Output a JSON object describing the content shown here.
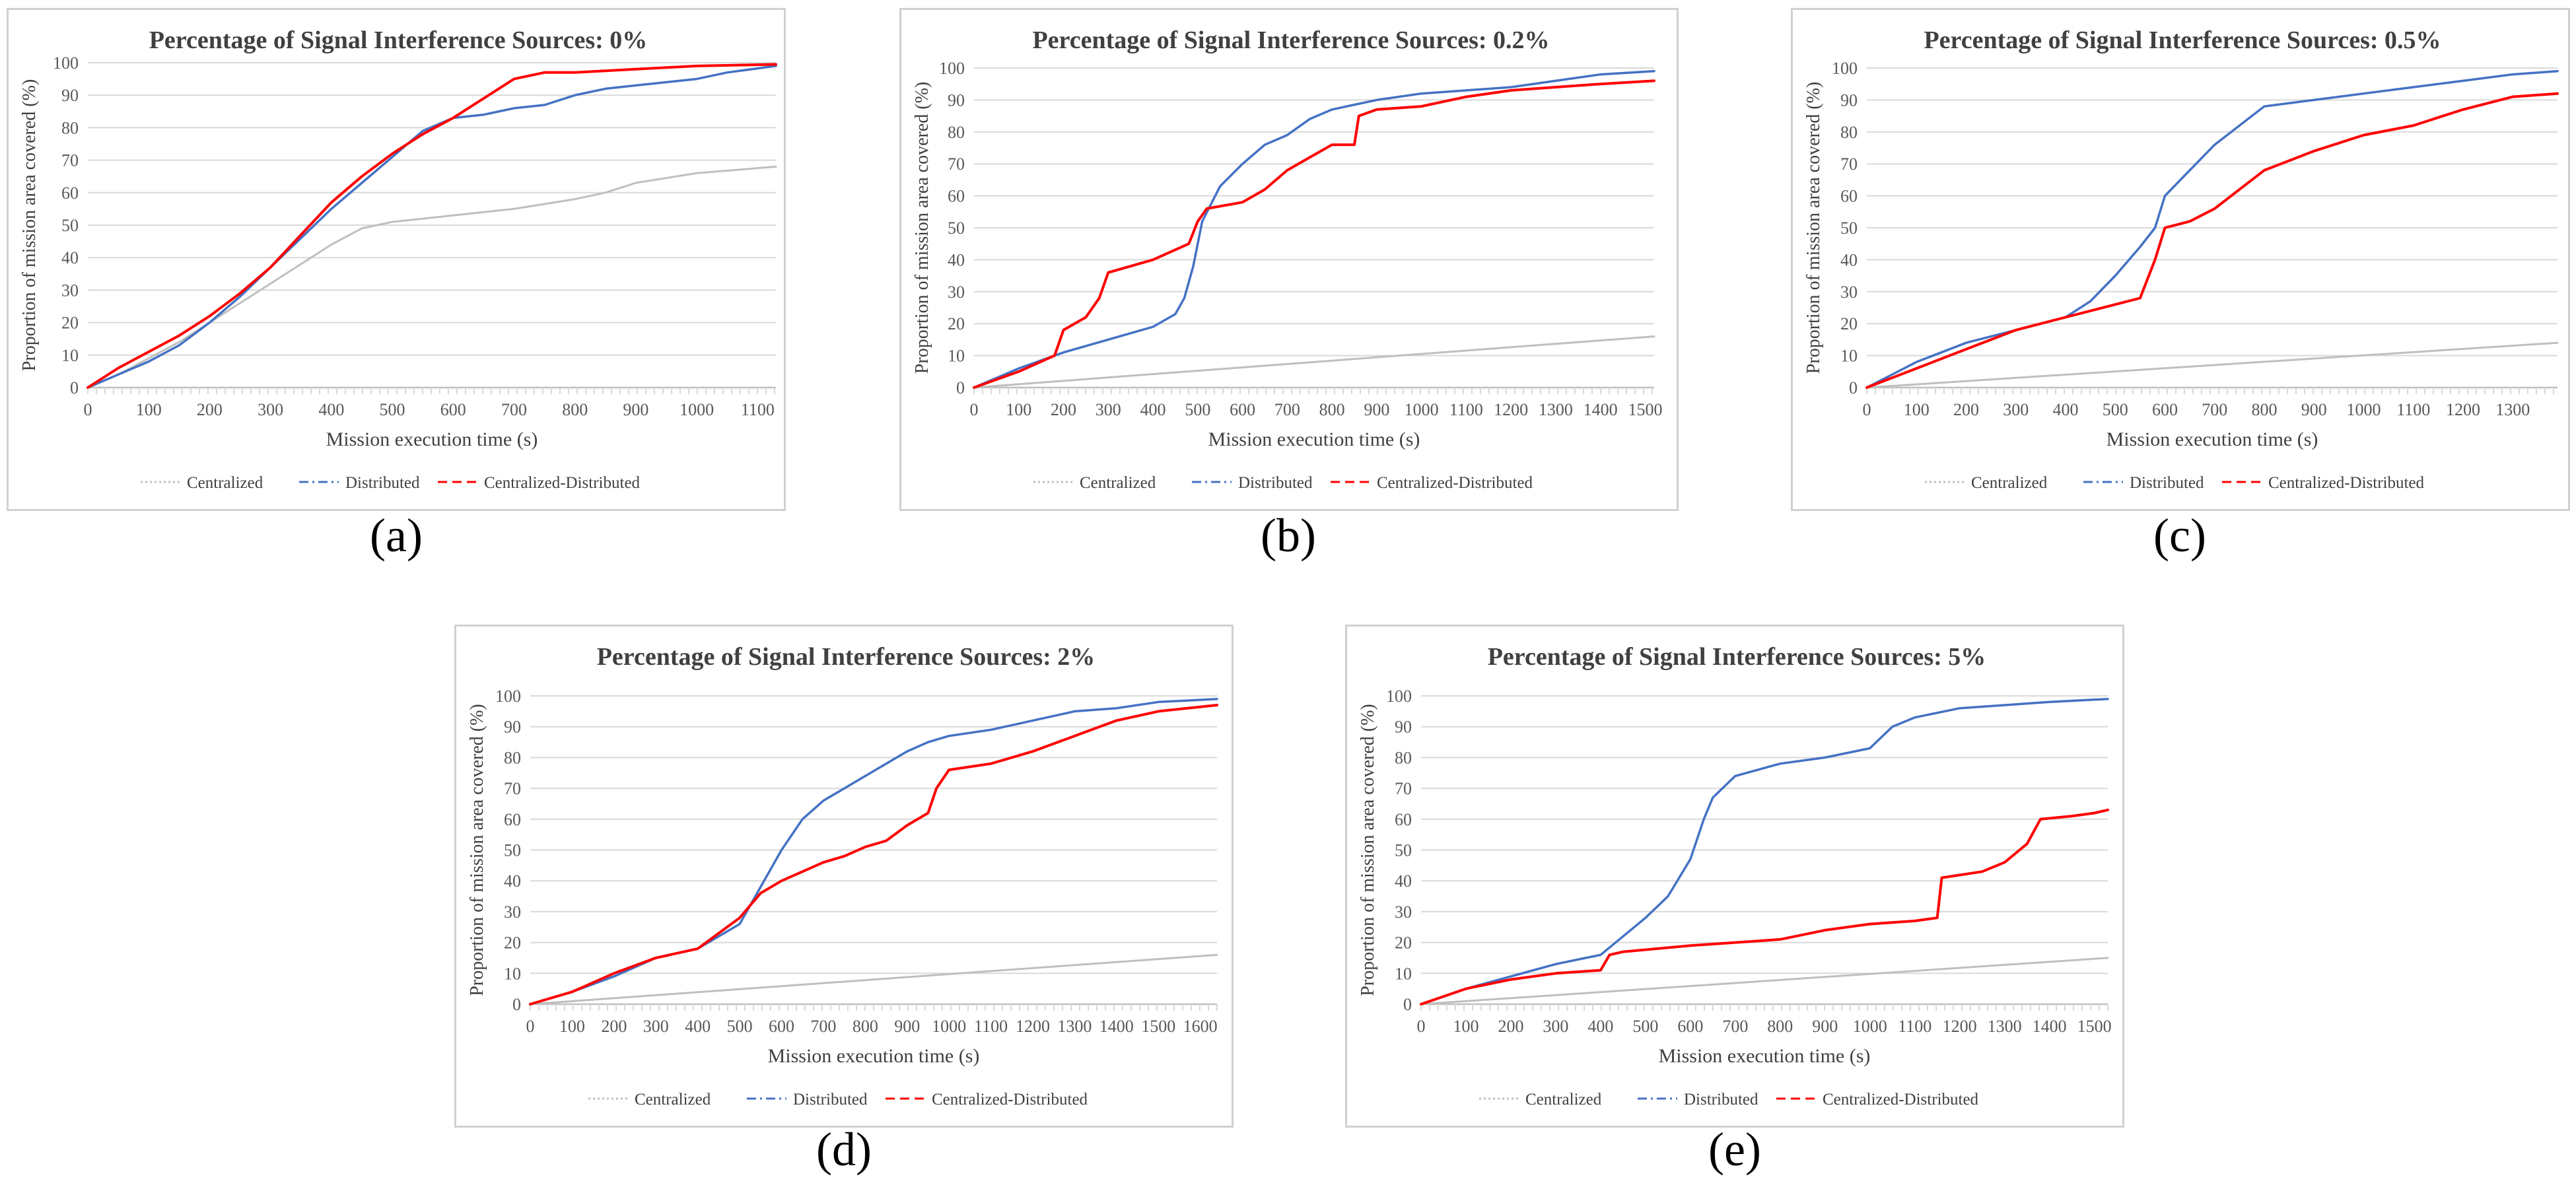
{
  "colors": {
    "centralized": "#bfbfbf",
    "distributed": "#4472c4",
    "centralized_distributed": "#ff0000",
    "grid": "#d9d9d9",
    "axis": "#bfbfbf",
    "border": "#d0d0d0"
  },
  "chart_data": [
    {
      "panel_label": "(a)",
      "type": "line",
      "title": "Percentage of Signal Interference Sources: 0%",
      "xlabel": "Mission execution time (s)",
      "ylabel": "Proportion of mission area covered (%)",
      "xlim": [
        0,
        1130
      ],
      "ylim": [
        0,
        100
      ],
      "xticks": [
        0,
        100,
        200,
        300,
        400,
        500,
        600,
        700,
        800,
        900,
        1000,
        1100
      ],
      "yticks": [
        0,
        10,
        20,
        30,
        40,
        50,
        60,
        70,
        80,
        90,
        100
      ],
      "grid": true,
      "legend": [
        "Centralized",
        "Distributed",
        "Centralized-Distributed"
      ],
      "series": [
        {
          "name": "Centralized",
          "x": [
            0,
            50,
            100,
            150,
            200,
            250,
            300,
            350,
            400,
            450,
            500,
            600,
            700,
            800,
            850,
            900,
            1000,
            1130
          ],
          "y": [
            0,
            4,
            9,
            14,
            20,
            26,
            32,
            38,
            44,
            49,
            51,
            53,
            55,
            58,
            60,
            63,
            66,
            68
          ]
        },
        {
          "name": "Distributed",
          "x": [
            0,
            50,
            100,
            150,
            200,
            250,
            300,
            350,
            400,
            450,
            500,
            550,
            600,
            650,
            700,
            750,
            800,
            850,
            900,
            950,
            1000,
            1050,
            1130
          ],
          "y": [
            0,
            4,
            8,
            13,
            20,
            28,
            37,
            46,
            55,
            63,
            71,
            79,
            83,
            84,
            86,
            87,
            90,
            92,
            93,
            94,
            95,
            97,
            99
          ]
        },
        {
          "name": "Centralized-Distributed",
          "x": [
            0,
            50,
            100,
            150,
            200,
            250,
            300,
            350,
            400,
            450,
            500,
            550,
            600,
            650,
            700,
            750,
            800,
            900,
            1000,
            1130
          ],
          "y": [
            0,
            6,
            11,
            16,
            22,
            29,
            37,
            47,
            57,
            65,
            72,
            78,
            83,
            89,
            95,
            97,
            97,
            98,
            99,
            99.5
          ]
        }
      ]
    },
    {
      "panel_label": "(b)",
      "type": "line",
      "title": "Percentage of Signal Interference Sources: 0.2%",
      "xlabel": "Mission execution time (s)",
      "ylabel": "Proportion of mission area covered (%)",
      "xlim": [
        0,
        1520
      ],
      "ylim": [
        0,
        100
      ],
      "xticks": [
        0,
        100,
        200,
        300,
        400,
        500,
        600,
        700,
        800,
        900,
        1000,
        1100,
        1200,
        1300,
        1400,
        1500
      ],
      "yticks": [
        0,
        10,
        20,
        30,
        40,
        50,
        60,
        70,
        80,
        90,
        100
      ],
      "grid": true,
      "legend": [
        "Centralized",
        "Distributed",
        "Centralized-Distributed"
      ],
      "series": [
        {
          "name": "Centralized",
          "x": [
            0,
            1520
          ],
          "y": [
            0,
            16
          ]
        },
        {
          "name": "Distributed",
          "x": [
            0,
            100,
            200,
            300,
            400,
            450,
            470,
            490,
            510,
            550,
            600,
            650,
            700,
            750,
            800,
            900,
            1000,
            1100,
            1200,
            1300,
            1400,
            1520
          ],
          "y": [
            0,
            6,
            11,
            15,
            19,
            23,
            28,
            38,
            52,
            63,
            70,
            76,
            79,
            84,
            87,
            90,
            92,
            93,
            94,
            96,
            98,
            99
          ]
        },
        {
          "name": "Centralized-Distributed",
          "x": [
            0,
            100,
            180,
            200,
            250,
            280,
            300,
            400,
            480,
            500,
            520,
            600,
            650,
            700,
            750,
            800,
            850,
            860,
            900,
            1000,
            1100,
            1200,
            1300,
            1400,
            1520
          ],
          "y": [
            0,
            5,
            10,
            18,
            22,
            28,
            36,
            40,
            45,
            52,
            56,
            58,
            62,
            68,
            72,
            76,
            76,
            85,
            87,
            88,
            91,
            93,
            94,
            95,
            96
          ]
        }
      ]
    },
    {
      "panel_label": "(c)",
      "type": "line",
      "title": "Percentage of Signal Interference Sources: 0.5%",
      "xlabel": "Mission execution time (s)",
      "ylabel": "Proportion of mission area covered (%)",
      "xlim": [
        0,
        1390
      ],
      "ylim": [
        0,
        100
      ],
      "xticks": [
        0,
        100,
        200,
        300,
        400,
        500,
        600,
        700,
        800,
        900,
        1000,
        1100,
        1200,
        1300
      ],
      "yticks": [
        0,
        10,
        20,
        30,
        40,
        50,
        60,
        70,
        80,
        90,
        100
      ],
      "grid": true,
      "legend": [
        "Centralized",
        "Distributed",
        "Centralized-Distributed"
      ],
      "series": [
        {
          "name": "Centralized",
          "x": [
            0,
            1390
          ],
          "y": [
            0,
            14
          ]
        },
        {
          "name": "Distributed",
          "x": [
            0,
            100,
            200,
            300,
            400,
            450,
            500,
            550,
            580,
            600,
            650,
            700,
            750,
            800,
            900,
            1000,
            1100,
            1200,
            1300,
            1390
          ],
          "y": [
            0,
            8,
            14,
            18,
            22,
            27,
            35,
            44,
            50,
            60,
            68,
            76,
            82,
            88,
            90,
            92,
            94,
            96,
            98,
            99
          ]
        },
        {
          "name": "Centralized-Distributed",
          "x": [
            0,
            100,
            200,
            300,
            400,
            500,
            550,
            580,
            600,
            650,
            700,
            750,
            800,
            850,
            900,
            1000,
            1100,
            1200,
            1300,
            1390
          ],
          "y": [
            0,
            6,
            12,
            18,
            22,
            26,
            28,
            40,
            50,
            52,
            56,
            62,
            68,
            71,
            74,
            79,
            82,
            87,
            91,
            92
          ]
        }
      ]
    },
    {
      "panel_label": "(d)",
      "type": "line",
      "title": "Percentage of Signal Interference Sources: 2%",
      "xlabel": "Mission execution time (s)",
      "ylabel": "Proportion of mission area covered (%)",
      "xlim": [
        0,
        1640
      ],
      "ylim": [
        0,
        100
      ],
      "xticks": [
        0,
        100,
        200,
        300,
        400,
        500,
        600,
        700,
        800,
        900,
        1000,
        1100,
        1200,
        1300,
        1400,
        1500,
        1600
      ],
      "yticks": [
        0,
        10,
        20,
        30,
        40,
        50,
        60,
        70,
        80,
        90,
        100
      ],
      "grid": true,
      "legend": [
        "Centralized",
        "Distributed",
        "Centralized-Distributed"
      ],
      "series": [
        {
          "name": "Centralized",
          "x": [
            0,
            1640
          ],
          "y": [
            0,
            16
          ]
        },
        {
          "name": "Distributed",
          "x": [
            0,
            100,
            200,
            300,
            400,
            500,
            550,
            600,
            650,
            700,
            750,
            800,
            850,
            900,
            950,
            1000,
            1100,
            1200,
            1300,
            1400,
            1500,
            1640
          ],
          "y": [
            0,
            4,
            9,
            15,
            18,
            26,
            38,
            50,
            60,
            66,
            70,
            74,
            78,
            82,
            85,
            87,
            89,
            92,
            95,
            96,
            98,
            99
          ]
        },
        {
          "name": "Centralized-Distributed",
          "x": [
            0,
            100,
            200,
            300,
            400,
            500,
            550,
            600,
            650,
            700,
            750,
            800,
            850,
            900,
            950,
            970,
            1000,
            1100,
            1200,
            1300,
            1400,
            1500,
            1640
          ],
          "y": [
            0,
            4,
            10,
            15,
            18,
            28,
            36,
            40,
            43,
            46,
            48,
            51,
            53,
            58,
            62,
            70,
            76,
            78,
            82,
            87,
            92,
            95,
            97
          ]
        }
      ]
    },
    {
      "panel_label": "(e)",
      "type": "line",
      "title": "Percentage of Signal Interference Sources: 5%",
      "xlabel": "Mission execution time (s)",
      "ylabel": "Proportion of mission area covered (%)",
      "xlim": [
        0,
        1530
      ],
      "ylim": [
        0,
        100
      ],
      "xticks": [
        0,
        100,
        200,
        300,
        400,
        500,
        600,
        700,
        800,
        900,
        1000,
        1100,
        1200,
        1300,
        1400,
        1500
      ],
      "yticks": [
        0,
        10,
        20,
        30,
        40,
        50,
        60,
        70,
        80,
        90,
        100
      ],
      "grid": true,
      "legend": [
        "Centralized",
        "Distributed",
        "Centralized-Distributed"
      ],
      "series": [
        {
          "name": "Centralized",
          "x": [
            0,
            1530
          ],
          "y": [
            0,
            15
          ]
        },
        {
          "name": "Distributed",
          "x": [
            0,
            100,
            200,
            300,
            400,
            450,
            500,
            550,
            600,
            630,
            650,
            700,
            800,
            900,
            1000,
            1050,
            1100,
            1200,
            1300,
            1400,
            1530
          ],
          "y": [
            0,
            5,
            9,
            13,
            16,
            22,
            28,
            35,
            47,
            60,
            67,
            74,
            78,
            80,
            83,
            90,
            93,
            96,
            97,
            98,
            99
          ]
        },
        {
          "name": "Centralized-Distributed",
          "x": [
            0,
            100,
            200,
            300,
            400,
            420,
            450,
            600,
            800,
            900,
            1000,
            1100,
            1150,
            1160,
            1250,
            1300,
            1350,
            1380,
            1450,
            1500,
            1530
          ],
          "y": [
            0,
            5,
            8,
            10,
            11,
            16,
            17,
            19,
            21,
            24,
            26,
            27,
            28,
            41,
            43,
            46,
            52,
            60,
            61,
            62,
            63
          ]
        }
      ]
    }
  ]
}
